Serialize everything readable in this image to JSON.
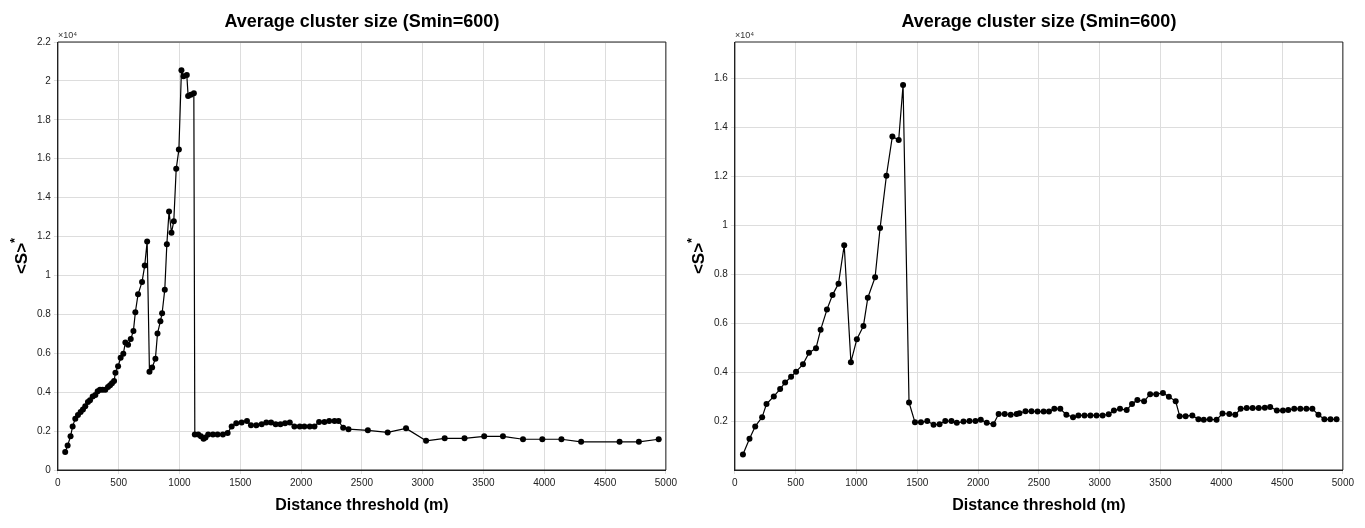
{
  "chart_data": [
    {
      "type": "line",
      "title": "Average cluster size (Smin=600)",
      "xlabel": "Distance threshold (m)",
      "ylabel": "<S>$^{*}$",
      "annotations": [
        "×10⁴"
      ],
      "color": "#000000",
      "marker": "circle",
      "grid": true,
      "xlim": [
        0,
        5000
      ],
      "xticks": [
        0,
        500,
        1000,
        1500,
        2000,
        2500,
        3000,
        3500,
        4000,
        4500,
        5000
      ],
      "ylim": [
        0,
        2.2
      ],
      "yticks": [
        0,
        0.2,
        0.4,
        0.6,
        0.8,
        1,
        1.2,
        1.4,
        1.6,
        1.8,
        2,
        2.2
      ],
      "x": [
        60,
        80,
        104,
        121,
        143,
        165,
        187,
        206,
        225,
        247,
        264,
        286,
        308,
        327,
        346,
        368,
        390,
        412,
        429,
        445,
        462,
        473,
        495,
        516,
        538,
        555,
        577,
        599,
        621,
        637,
        659,
        692,
        714,
        734,
        753,
        775,
        802,
        819,
        843,
        857,
        879,
        896,
        914,
        934,
        953,
        973,
        995,
        1016,
        1033,
        1060,
        1071,
        1093,
        1118,
        1126,
        1154,
        1176,
        1198,
        1214,
        1236,
        1275,
        1313,
        1357,
        1396,
        1429,
        1467,
        1511,
        1555,
        1588,
        1632,
        1676,
        1714,
        1753,
        1791,
        1830,
        1868,
        1907,
        1945,
        1989,
        2027,
        2071,
        2110,
        2148,
        2192,
        2231,
        2275,
        2308,
        2346,
        2390,
        2549,
        2712,
        2863,
        3028,
        3181,
        3344,
        3506,
        3660,
        3825,
        3984,
        4141,
        4303,
        4619,
        4778,
        4941
      ],
      "values": [
        0.093,
        0.126,
        0.173,
        0.224,
        0.264,
        0.283,
        0.298,
        0.311,
        0.328,
        0.35,
        0.358,
        0.378,
        0.385,
        0.405,
        0.412,
        0.412,
        0.412,
        0.426,
        0.436,
        0.446,
        0.458,
        0.5,
        0.533,
        0.577,
        0.597,
        0.656,
        0.644,
        0.673,
        0.715,
        0.811,
        0.903,
        0.967,
        1.051,
        1.174,
        0.505,
        0.527,
        0.572,
        0.701,
        0.765,
        0.806,
        0.927,
        1.161,
        1.329,
        1.22,
        1.278,
        1.548,
        1.647,
        2.055,
        2.024,
        2.03,
        1.923,
        1.929,
        1.936,
        0.183,
        0.183,
        0.173,
        0.16,
        0.167,
        0.183,
        0.183,
        0.183,
        0.183,
        0.19,
        0.224,
        0.24,
        0.244,
        0.252,
        0.23,
        0.23,
        0.235,
        0.244,
        0.244,
        0.235,
        0.235,
        0.24,
        0.244,
        0.224,
        0.224,
        0.224,
        0.224,
        0.224,
        0.247,
        0.247,
        0.252,
        0.252,
        0.252,
        0.217,
        0.21,
        0.204,
        0.193,
        0.214,
        0.15,
        0.163,
        0.163,
        0.173,
        0.173,
        0.158,
        0.158,
        0.158,
        0.145,
        0.145,
        0.145,
        0.158
      ]
    },
    {
      "type": "line",
      "title": "Average cluster size (Smin=600)",
      "xlabel": "Distance threshold (m)",
      "ylabel": "<S>$^{*}$",
      "annotations": [
        "×10⁴"
      ],
      "color": "#000000",
      "marker": "circle",
      "grid": true,
      "xlim": [
        0,
        5000
      ],
      "xticks": [
        0,
        500,
        1000,
        1500,
        2000,
        2500,
        3000,
        3500,
        4000,
        4500,
        5000
      ],
      "ylim": [
        0,
        1.75
      ],
      "yticks": [
        0.2,
        0.4,
        0.6,
        0.8,
        1,
        1.2,
        1.4,
        1.6
      ],
      "x": [
        66,
        120,
        167,
        224,
        260,
        320,
        372,
        413,
        462,
        503,
        560,
        609,
        667,
        705,
        757,
        803,
        852,
        899,
        954,
        1003,
        1057,
        1093,
        1153,
        1194,
        1246,
        1295,
        1347,
        1383,
        1432,
        1481,
        1530,
        1582,
        1634,
        1683,
        1730,
        1781,
        1825,
        1880,
        1929,
        1978,
        2022,
        2071,
        2126,
        2169,
        2219,
        2268,
        2317,
        2340,
        2390,
        2439,
        2489,
        2539,
        2583,
        2627,
        2676,
        2726,
        2781,
        2825,
        2875,
        2924,
        2974,
        3024,
        3074,
        3117,
        3167,
        3222,
        3266,
        3310,
        3365,
        3415,
        3465,
        3520,
        3569,
        3625,
        3658,
        3707,
        3762,
        3812,
        3856,
        3906,
        3961,
        4010,
        4066,
        4115,
        4159,
        4209,
        4258,
        4308,
        4358,
        4402,
        4457,
        4507,
        4551,
        4600,
        4650,
        4700,
        4749,
        4799,
        4848,
        4898,
        4948
      ],
      "values": [
        0.063,
        0.128,
        0.178,
        0.216,
        0.27,
        0.301,
        0.331,
        0.358,
        0.381,
        0.402,
        0.432,
        0.479,
        0.498,
        0.573,
        0.656,
        0.716,
        0.762,
        0.919,
        0.441,
        0.535,
        0.589,
        0.704,
        0.788,
        0.989,
        1.203,
        1.364,
        1.349,
        1.574,
        0.276,
        0.195,
        0.195,
        0.2,
        0.185,
        0.187,
        0.2,
        0.2,
        0.193,
        0.198,
        0.2,
        0.2,
        0.205,
        0.193,
        0.187,
        0.229,
        0.229,
        0.226,
        0.229,
        0.232,
        0.24,
        0.24,
        0.239,
        0.239,
        0.239,
        0.25,
        0.25,
        0.226,
        0.216,
        0.223,
        0.223,
        0.223,
        0.223,
        0.223,
        0.228,
        0.243,
        0.25,
        0.245,
        0.27,
        0.286,
        0.281,
        0.31,
        0.31,
        0.315,
        0.3,
        0.281,
        0.22,
        0.22,
        0.223,
        0.207,
        0.205,
        0.207,
        0.205,
        0.231,
        0.229,
        0.226,
        0.25,
        0.253,
        0.253,
        0.253,
        0.255,
        0.258,
        0.243,
        0.243,
        0.245,
        0.25,
        0.25,
        0.25,
        0.25,
        0.226,
        0.207,
        0.207,
        0.207
      ]
    }
  ]
}
